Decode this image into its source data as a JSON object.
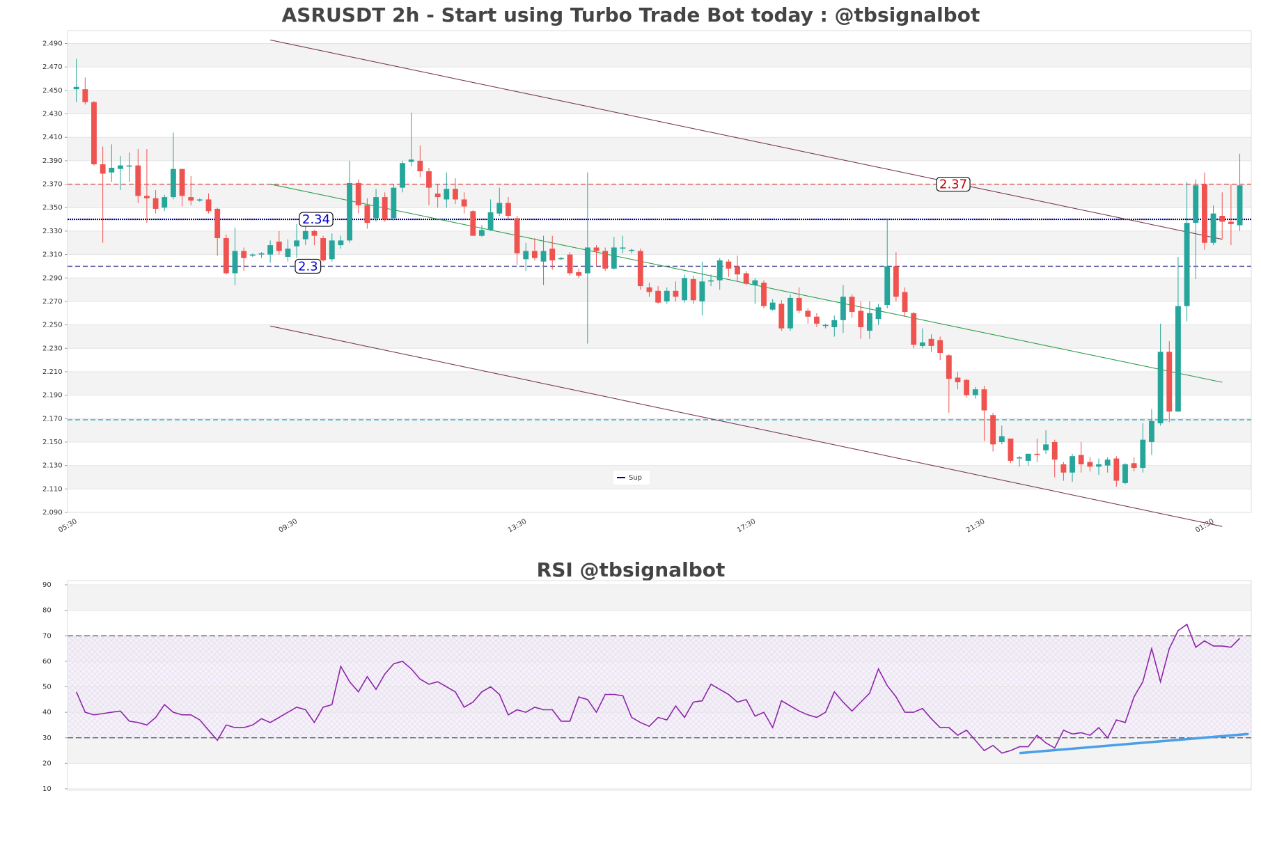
{
  "chart_data": [
    {
      "type": "candlestick",
      "title": "ASRUSDT 2h - Start using Turbo Trade Bot today : @tbsignalbot",
      "categories": [
        "05:30",
        null,
        null,
        null,
        null,
        null,
        null,
        null,
        null,
        null,
        null,
        null,
        null,
        null,
        null,
        null,
        null,
        null,
        null,
        null,
        null,
        null,
        null,
        null,
        null,
        "09:30",
        null,
        null,
        null,
        null,
        null,
        null,
        null,
        null,
        null,
        null,
        null,
        null,
        null,
        null,
        null,
        null,
        null,
        null,
        null,
        null,
        null,
        null,
        null,
        null,
        null,
        "13:30",
        null,
        null,
        null,
        null,
        null,
        null,
        null,
        null,
        null,
        null,
        null,
        null,
        null,
        null,
        null,
        null,
        null,
        null,
        null,
        null,
        null,
        null,
        null,
        null,
        null,
        "17:30",
        null,
        null,
        null,
        null,
        null,
        null,
        null,
        null,
        null,
        null,
        null,
        null,
        null,
        null,
        null,
        null,
        null,
        null,
        null,
        null,
        null,
        null,
        null,
        null,
        null,
        "21:30",
        null,
        null,
        null,
        null,
        null,
        null,
        null,
        null,
        null,
        null,
        null,
        null,
        null,
        null,
        null,
        null,
        null,
        null,
        null,
        null,
        null,
        null,
        null,
        null,
        null,
        "01:30",
        null,
        null,
        null
      ],
      "open": [
        2.451,
        2.451,
        2.44,
        2.387,
        2.38,
        2.383,
        2.385,
        2.386,
        2.36,
        2.358,
        2.35,
        2.359,
        2.383,
        2.359,
        2.356,
        2.357,
        2.349,
        2.324,
        2.294,
        2.313,
        2.309,
        2.31,
        2.31,
        2.321,
        2.308,
        2.317,
        2.323,
        2.33,
        2.324,
        2.306,
        2.318,
        2.322,
        2.371,
        2.352,
        2.341,
        2.359,
        2.341,
        2.367,
        2.389,
        2.39,
        2.381,
        2.362,
        2.357,
        2.366,
        2.357,
        2.347,
        2.326,
        2.331,
        2.345,
        2.354,
        2.341,
        2.306,
        2.313,
        2.304,
        2.315,
        2.306,
        2.31,
        2.295,
        2.294,
        2.316,
        2.313,
        2.298,
        2.315,
        2.313,
        2.313,
        2.282,
        2.279,
        2.27,
        2.279,
        2.271,
        2.289,
        2.27,
        2.287,
        2.288,
        2.304,
        2.3,
        2.294,
        2.284,
        2.286,
        2.263,
        2.268,
        2.247,
        2.273,
        2.262,
        2.257,
        2.249,
        2.248,
        2.254,
        2.274,
        2.262,
        2.245,
        2.255,
        2.267,
        2.3,
        2.278,
        2.26,
        2.232,
        2.238,
        2.237,
        2.224,
        2.205,
        2.203,
        2.19,
        2.195,
        2.173,
        2.15,
        2.153,
        2.136,
        2.134,
        2.14,
        2.143,
        2.15,
        2.131,
        2.124,
        2.139,
        2.133,
        2.129,
        2.13,
        2.136,
        2.115,
        2.132,
        2.128,
        2.15,
        2.166,
        2.227,
        2.176,
        2.266,
        2.337,
        2.37,
        2.32,
        2.343,
        2.338,
        2.335
      ],
      "high": [
        2.477,
        2.461,
        2.441,
        2.402,
        2.404,
        2.394,
        2.397,
        2.4,
        2.4,
        2.365,
        2.361,
        2.414,
        2.383,
        2.377,
        2.358,
        2.362,
        2.35,
        2.327,
        2.333,
        2.316,
        2.311,
        2.312,
        2.322,
        2.33,
        2.323,
        2.336,
        2.335,
        2.331,
        2.326,
        2.328,
        2.326,
        2.39,
        2.374,
        2.358,
        2.366,
        2.363,
        2.37,
        2.39,
        2.431,
        2.403,
        2.384,
        2.37,
        2.38,
        2.375,
        2.363,
        2.348,
        2.335,
        2.357,
        2.367,
        2.359,
        2.343,
        2.32,
        2.324,
        2.326,
        2.326,
        2.308,
        2.312,
        2.298,
        2.38,
        2.318,
        2.316,
        2.325,
        2.326,
        2.315,
        2.315,
        2.286,
        2.283,
        2.282,
        2.287,
        2.293,
        2.292,
        2.304,
        2.293,
        2.307,
        2.306,
        2.309,
        2.296,
        2.29,
        2.288,
        2.272,
        2.271,
        2.276,
        2.282,
        2.264,
        2.26,
        2.251,
        2.258,
        2.284,
        2.276,
        2.27,
        2.27,
        2.268,
        2.34,
        2.312,
        2.282,
        2.261,
        2.247,
        2.242,
        2.24,
        2.225,
        2.21,
        2.204,
        2.197,
        2.198,
        2.175,
        2.164,
        2.153,
        2.138,
        2.14,
        2.153,
        2.16,
        2.152,
        2.133,
        2.14,
        2.15,
        2.137,
        2.136,
        2.137,
        2.138,
        2.132,
        2.137,
        2.166,
        2.178,
        2.251,
        2.236,
        2.308,
        2.372,
        2.374,
        2.38,
        2.352,
        2.363,
        2.37,
        2.396
      ],
      "low": [
        2.44,
        2.438,
        2.386,
        2.32,
        2.372,
        2.365,
        2.372,
        2.354,
        2.337,
        2.345,
        2.347,
        2.357,
        2.351,
        2.352,
        2.355,
        2.345,
        2.309,
        2.293,
        2.284,
        2.296,
        2.308,
        2.307,
        2.303,
        2.31,
        2.304,
        2.307,
        2.318,
        2.318,
        2.304,
        2.304,
        2.315,
        2.32,
        2.345,
        2.332,
        2.338,
        2.338,
        2.339,
        2.363,
        2.385,
        2.376,
        2.352,
        2.35,
        2.35,
        2.353,
        2.345,
        2.326,
        2.325,
        2.33,
        2.343,
        2.34,
        2.301,
        2.296,
        2.305,
        2.284,
        2.297,
        2.305,
        2.292,
        2.29,
        2.234,
        2.3,
        2.296,
        2.297,
        2.311,
        2.311,
        2.28,
        2.274,
        2.268,
        2.268,
        2.27,
        2.269,
        2.268,
        2.258,
        2.283,
        2.28,
        2.291,
        2.287,
        2.284,
        2.268,
        2.264,
        2.262,
        2.245,
        2.245,
        2.26,
        2.251,
        2.248,
        2.247,
        2.24,
        2.243,
        2.256,
        2.238,
        2.238,
        2.25,
        2.264,
        2.27,
        2.257,
        2.23,
        2.23,
        2.227,
        2.22,
        2.175,
        2.195,
        2.188,
        2.187,
        2.151,
        2.142,
        2.148,
        2.132,
        2.129,
        2.13,
        2.133,
        2.14,
        2.12,
        2.117,
        2.116,
        2.124,
        2.125,
        2.122,
        2.124,
        2.112,
        2.114,
        2.125,
        2.124,
        2.139,
        2.164,
        2.167,
        2.176,
        2.253,
        2.289,
        2.314,
        2.318,
        2.323,
        2.318,
        2.33
      ],
      "close": [
        2.453,
        2.44,
        2.387,
        2.379,
        2.384,
        2.386,
        2.386,
        2.36,
        2.358,
        2.349,
        2.359,
        2.383,
        2.36,
        2.356,
        2.357,
        2.347,
        2.324,
        2.294,
        2.313,
        2.307,
        2.31,
        2.311,
        2.318,
        2.313,
        2.315,
        2.322,
        2.33,
        2.326,
        2.305,
        2.322,
        2.322,
        2.371,
        2.352,
        2.337,
        2.359,
        2.34,
        2.367,
        2.388,
        2.391,
        2.381,
        2.367,
        2.359,
        2.366,
        2.357,
        2.351,
        2.326,
        2.331,
        2.346,
        2.354,
        2.343,
        2.311,
        2.313,
        2.307,
        2.313,
        2.305,
        2.307,
        2.294,
        2.292,
        2.316,
        2.313,
        2.298,
        2.316,
        2.316,
        2.314,
        2.283,
        2.278,
        2.269,
        2.279,
        2.274,
        2.29,
        2.271,
        2.287,
        2.288,
        2.305,
        2.298,
        2.293,
        2.285,
        2.288,
        2.266,
        2.269,
        2.247,
        2.273,
        2.262,
        2.257,
        2.251,
        2.25,
        2.254,
        2.274,
        2.261,
        2.248,
        2.26,
        2.265,
        2.3,
        2.274,
        2.261,
        2.233,
        2.235,
        2.232,
        2.226,
        2.204,
        2.201,
        2.19,
        2.195,
        2.177,
        2.148,
        2.155,
        2.134,
        2.137,
        2.14,
        2.139,
        2.148,
        2.135,
        2.124,
        2.138,
        2.131,
        2.129,
        2.131,
        2.135,
        2.117,
        2.131,
        2.128,
        2.152,
        2.168,
        2.227,
        2.176,
        2.266,
        2.337,
        2.369,
        2.32,
        2.345,
        2.338,
        2.336,
        2.369
      ],
      "up_color": "#26a69a",
      "down_color": "#ef5350",
      "ylim": [
        2.09,
        2.501
      ],
      "yticks": [
        {
          "value": 2.09,
          "label": "2.090"
        },
        {
          "value": 2.11,
          "label": "2.110"
        },
        {
          "value": 2.13,
          "label": "2.130"
        },
        {
          "value": 2.15,
          "label": "2.150"
        },
        {
          "value": 2.17,
          "label": "2.170"
        },
        {
          "value": 2.19,
          "label": "2.190"
        },
        {
          "value": 2.21,
          "label": "2.210"
        },
        {
          "value": 2.23,
          "label": "2.230"
        },
        {
          "value": 2.25,
          "label": "2.250"
        },
        {
          "value": 2.27,
          "label": "2.270"
        },
        {
          "value": 2.29,
          "label": "2.290"
        },
        {
          "value": 2.31,
          "label": "2.310"
        },
        {
          "value": 2.33,
          "label": "2.330"
        },
        {
          "value": 2.35,
          "label": "2.350"
        },
        {
          "value": 2.37,
          "label": "2.370"
        },
        {
          "value": 2.39,
          "label": "2.390"
        },
        {
          "value": 2.41,
          "label": "2.410"
        },
        {
          "value": 2.43,
          "label": "2.430"
        },
        {
          "value": 2.45,
          "label": "2.450"
        },
        {
          "value": 2.47,
          "label": "2.470"
        },
        {
          "value": 2.49,
          "label": "2.490"
        }
      ],
      "grid": true,
      "levels": [
        {
          "value": 2.37,
          "color": "#d9534f",
          "dashed": true,
          "labeled": true
        },
        {
          "value": 2.34,
          "color": "#00008b",
          "dashed": false,
          "labeled": true
        },
        {
          "value": 2.3,
          "color": "#3a3a8c",
          "dashed": true,
          "labeled": true
        },
        {
          "value": 2.169,
          "color": "#17a2b8",
          "dashed": true,
          "labeled": false
        }
      ],
      "trendlines": [
        {
          "from_index": 22,
          "from": 2.493,
          "to_index": 130,
          "to": 2.323,
          "color": "#7b3a55"
        },
        {
          "from_index": 22,
          "from": 2.249,
          "to_index": 130,
          "to": 2.078,
          "color": "#7b3a55"
        },
        {
          "from_index": 22,
          "from": 2.37,
          "to_index": 130,
          "to": 2.201,
          "color": "#2e9e4a"
        }
      ],
      "legend": {
        "position": "lower center",
        "entries": [
          {
            "name": "Sup",
            "color": "#00008b"
          }
        ]
      }
    },
    {
      "type": "line",
      "title": "RSI @tbsignalbot",
      "values": [
        48,
        40,
        39,
        39.5,
        40,
        40.5,
        36.5,
        36,
        35,
        38,
        43,
        40,
        39,
        39,
        37,
        33,
        29,
        35,
        34,
        34,
        35,
        37.5,
        36,
        38,
        40,
        42,
        41,
        36,
        42,
        43,
        58,
        52,
        48,
        54,
        49,
        55,
        59,
        60,
        57,
        53,
        51,
        52,
        50,
        48,
        42,
        44,
        48,
        50,
        47,
        39,
        41,
        40,
        42,
        41,
        41,
        36.5,
        36.5,
        46,
        45,
        40,
        47,
        47,
        46.5,
        38,
        36,
        34.5,
        38,
        37,
        42.5,
        38,
        44,
        44.5,
        51,
        49,
        47,
        44,
        45,
        38.5,
        40,
        34,
        44.5,
        42.5,
        40.5,
        39,
        38,
        40,
        48,
        44,
        40.5,
        44,
        47.5,
        57,
        50.5,
        46,
        40,
        40,
        41.5,
        37.5,
        34,
        34,
        31,
        33,
        29,
        25,
        27,
        24,
        25,
        26.5,
        26.5,
        31,
        28,
        26,
        33,
        31.5,
        32,
        31,
        34,
        30,
        37,
        36,
        46,
        52,
        65,
        52,
        65,
        72,
        74.5,
        65.5,
        68,
        66,
        66,
        65.5,
        69
      ],
      "color": "#8e24aa",
      "ylim": [
        10,
        90
      ],
      "yticks": [
        10,
        20,
        30,
        40,
        50,
        60,
        70,
        80,
        90
      ],
      "grid": true,
      "levels": [
        {
          "value": 70,
          "color": "#555555",
          "dashed": true
        },
        {
          "value": 30,
          "color": "#555555",
          "dashed": true
        }
      ],
      "band": [
        30,
        70
      ],
      "trendlines": [
        {
          "from_index": 107,
          "from": 24,
          "to_index": 132,
          "to": 31.5,
          "color": "#4a9fe8"
        }
      ]
    }
  ]
}
